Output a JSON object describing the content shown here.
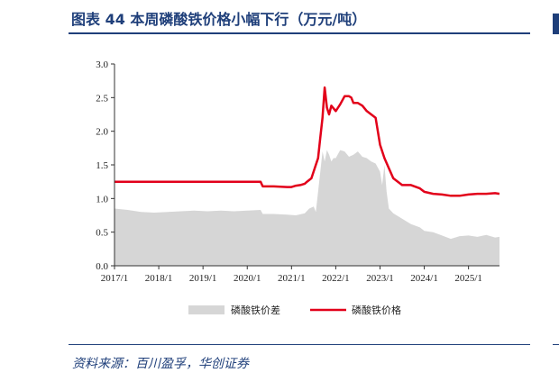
{
  "header": {
    "title": "图表 44   本周磷酸铁价格小幅下行（万元/吨）"
  },
  "footer": {
    "source": "资料来源：百川盈孚，华创证券"
  },
  "chart_data": {
    "type": "area+line",
    "title": "本周磷酸铁价格小幅下行（万元/吨）",
    "xlabel": "",
    "ylabel": "",
    "ylim": [
      0,
      3.0
    ],
    "xlim": [
      2017.0,
      2025.7
    ],
    "yticks": [
      0.0,
      0.5,
      1.0,
      1.5,
      2.0,
      2.5,
      3.0
    ],
    "ytick_labels": [
      "0.0",
      "0.5",
      "1.0",
      "1.5",
      "2.0",
      "2.5",
      "3.0"
    ],
    "xticks": [
      2017.0,
      2018.0,
      2019.0,
      2020.0,
      2021.0,
      2022.0,
      2023.0,
      2024.0,
      2025.0
    ],
    "xtick_labels": [
      "2017/1",
      "2018/1",
      "2019/1",
      "2020/1",
      "2021/1",
      "2022/1",
      "2023/1",
      "2024/1",
      "2025/1"
    ],
    "grid": false,
    "legend": {
      "position": "bottom"
    },
    "series": [
      {
        "name": "磷酸铁价差",
        "type": "area",
        "color": "#d6d6d6",
        "x": [
          2017.0,
          2017.3,
          2017.6,
          2017.9,
          2018.2,
          2018.5,
          2018.8,
          2019.1,
          2019.4,
          2019.7,
          2020.0,
          2020.3,
          2020.35,
          2020.6,
          2020.9,
          2021.1,
          2021.3,
          2021.4,
          2021.5,
          2021.55,
          2021.6,
          2021.7,
          2021.75,
          2021.8,
          2021.85,
          2021.9,
          2021.95,
          2022.0,
          2022.1,
          2022.2,
          2022.3,
          2022.4,
          2022.5,
          2022.6,
          2022.7,
          2022.8,
          2022.9,
          2023.0,
          2023.05,
          2023.1,
          2023.15,
          2023.2,
          2023.3,
          2023.5,
          2023.7,
          2023.9,
          2024.0,
          2024.2,
          2024.4,
          2024.6,
          2024.8,
          2025.0,
          2025.2,
          2025.4,
          2025.6,
          2025.7
        ],
        "values": [
          0.85,
          0.83,
          0.8,
          0.79,
          0.8,
          0.81,
          0.82,
          0.81,
          0.82,
          0.81,
          0.82,
          0.83,
          0.77,
          0.77,
          0.76,
          0.75,
          0.78,
          0.85,
          0.88,
          0.8,
          1.1,
          1.7,
          1.55,
          1.72,
          1.65,
          1.55,
          1.6,
          1.6,
          1.72,
          1.7,
          1.62,
          1.65,
          1.7,
          1.62,
          1.6,
          1.55,
          1.52,
          1.4,
          1.2,
          1.5,
          1.1,
          0.85,
          0.78,
          0.7,
          0.62,
          0.57,
          0.52,
          0.5,
          0.45,
          0.4,
          0.44,
          0.45,
          0.43,
          0.46,
          0.42,
          0.43
        ]
      },
      {
        "name": "磷酸铁价格",
        "type": "line",
        "color": "#e2001a",
        "x": [
          2017.0,
          2020.3,
          2020.35,
          2020.6,
          2020.9,
          2021.0,
          2021.1,
          2021.2,
          2021.3,
          2021.35,
          2021.45,
          2021.55,
          2021.6,
          2021.65,
          2021.7,
          2021.75,
          2021.8,
          2021.85,
          2021.9,
          2022.0,
          2022.05,
          2022.1,
          2022.2,
          2022.3,
          2022.35,
          2022.4,
          2022.5,
          2022.6,
          2022.7,
          2022.8,
          2022.9,
          2023.0,
          2023.1,
          2023.2,
          2023.3,
          2023.5,
          2023.7,
          2023.9,
          2024.0,
          2024.2,
          2024.4,
          2024.6,
          2024.8,
          2025.0,
          2025.2,
          2025.4,
          2025.6,
          2025.7
        ],
        "values": [
          1.25,
          1.25,
          1.18,
          1.18,
          1.17,
          1.17,
          1.19,
          1.2,
          1.22,
          1.25,
          1.3,
          1.5,
          1.6,
          1.9,
          2.2,
          2.65,
          2.35,
          2.25,
          2.38,
          2.3,
          2.35,
          2.4,
          2.52,
          2.52,
          2.5,
          2.42,
          2.42,
          2.38,
          2.3,
          2.25,
          2.2,
          1.8,
          1.6,
          1.45,
          1.3,
          1.2,
          1.2,
          1.15,
          1.1,
          1.07,
          1.06,
          1.04,
          1.04,
          1.06,
          1.07,
          1.07,
          1.08,
          1.07
        ]
      }
    ]
  }
}
